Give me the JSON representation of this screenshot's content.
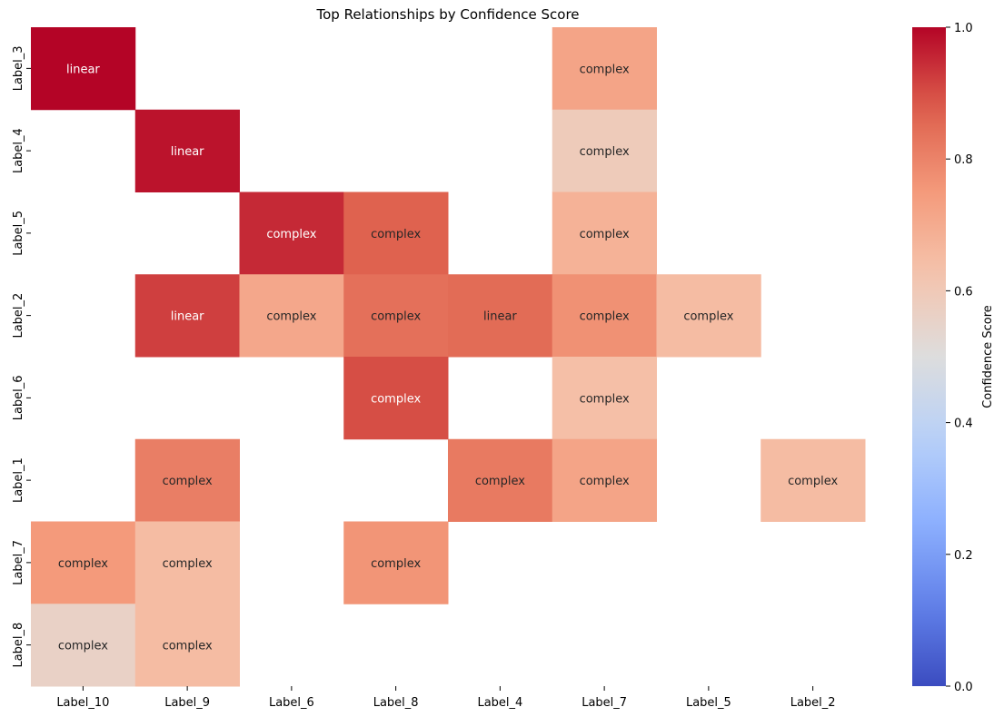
{
  "chart_data": {
    "type": "heatmap",
    "title": "Top Relationships by Confidence Score",
    "xlabel": "",
    "ylabel": "",
    "x_categories": [
      "Label_10",
      "Label_9",
      "Label_6",
      "Label_8",
      "Label_4",
      "Label_7",
      "Label_5",
      "Label_2"
    ],
    "y_categories": [
      "Label_3",
      "Label_4",
      "Label_5",
      "Label_2",
      "Label_6",
      "Label_1",
      "Label_7",
      "Label_8"
    ],
    "colormap": "coolwarm",
    "vmin": 0,
    "vmax": 1,
    "colorbar": {
      "label": "Confidence Score",
      "ticks": [
        0.0,
        0.2,
        0.4,
        0.6,
        0.8,
        1.0
      ],
      "tick_labels": [
        "0.0",
        "0.2",
        "0.4",
        "0.6",
        "0.8",
        "1.0"
      ]
    },
    "cells": [
      {
        "y": "Label_3",
        "x": "Label_10",
        "value": 1.0,
        "annotation": "linear"
      },
      {
        "y": "Label_3",
        "x": "Label_7",
        "value": 0.72,
        "annotation": "complex"
      },
      {
        "y": "Label_4",
        "x": "Label_9",
        "value": 0.98,
        "annotation": "linear"
      },
      {
        "y": "Label_4",
        "x": "Label_7",
        "value": 0.59,
        "annotation": "complex"
      },
      {
        "y": "Label_5",
        "x": "Label_6",
        "value": 0.95,
        "annotation": "complex"
      },
      {
        "y": "Label_5",
        "x": "Label_8",
        "value": 0.87,
        "annotation": "complex"
      },
      {
        "y": "Label_5",
        "x": "Label_7",
        "value": 0.68,
        "annotation": "complex"
      },
      {
        "y": "Label_2",
        "x": "Label_9",
        "value": 0.92,
        "annotation": "linear"
      },
      {
        "y": "Label_2",
        "x": "Label_6",
        "value": 0.71,
        "annotation": "complex"
      },
      {
        "y": "Label_2",
        "x": "Label_8",
        "value": 0.84,
        "annotation": "complex"
      },
      {
        "y": "Label_2",
        "x": "Label_4",
        "value": 0.85,
        "annotation": "linear"
      },
      {
        "y": "Label_2",
        "x": "Label_7",
        "value": 0.77,
        "annotation": "complex"
      },
      {
        "y": "Label_2",
        "x": "Label_5",
        "value": 0.65,
        "annotation": "complex"
      },
      {
        "y": "Label_6",
        "x": "Label_8",
        "value": 0.9,
        "annotation": "complex"
      },
      {
        "y": "Label_6",
        "x": "Label_7",
        "value": 0.64,
        "annotation": "complex"
      },
      {
        "y": "Label_1",
        "x": "Label_9",
        "value": 0.81,
        "annotation": "complex"
      },
      {
        "y": "Label_1",
        "x": "Label_4",
        "value": 0.82,
        "annotation": "complex"
      },
      {
        "y": "Label_1",
        "x": "Label_7",
        "value": 0.72,
        "annotation": "complex"
      },
      {
        "y": "Label_1",
        "x": "Label_2",
        "value": 0.65,
        "annotation": "complex"
      },
      {
        "y": "Label_7",
        "x": "Label_10",
        "value": 0.75,
        "annotation": "complex"
      },
      {
        "y": "Label_7",
        "x": "Label_9",
        "value": 0.65,
        "annotation": "complex"
      },
      {
        "y": "Label_7",
        "x": "Label_8",
        "value": 0.76,
        "annotation": "complex"
      },
      {
        "y": "Label_8",
        "x": "Label_10",
        "value": 0.56,
        "annotation": "complex"
      },
      {
        "y": "Label_8",
        "x": "Label_9",
        "value": 0.65,
        "annotation": "complex"
      }
    ]
  }
}
